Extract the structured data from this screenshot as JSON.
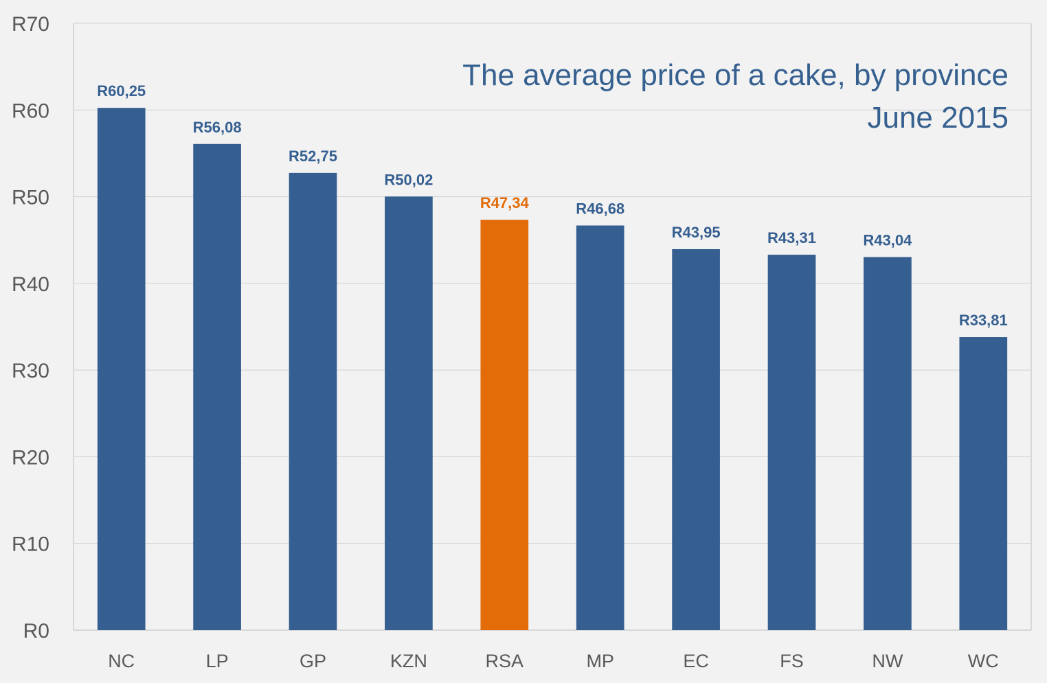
{
  "chart_data": {
    "type": "bar",
    "title": "The average price of a cake, by province",
    "subtitle": "June 2015",
    "xlabel": "",
    "ylabel": "",
    "categories": [
      "NC",
      "LP",
      "GP",
      "KZN",
      "RSA",
      "MP",
      "EC",
      "FS",
      "NW",
      "WC"
    ],
    "values": [
      60.25,
      56.08,
      52.75,
      50.02,
      47.34,
      46.68,
      43.95,
      43.31,
      43.04,
      33.81
    ],
    "data_labels": [
      "R60,25",
      "R56,08",
      "R52,75",
      "R50,02",
      "R47,34",
      "R46,68",
      "R43,95",
      "R43,31",
      "R43,04",
      "R33,81"
    ],
    "highlight_category": "RSA",
    "ylim": [
      0,
      70
    ],
    "yticks": [
      0,
      10,
      20,
      30,
      40,
      50,
      60,
      70
    ],
    "ytick_labels": [
      "R0",
      "R10",
      "R20",
      "R30",
      "R40",
      "R50",
      "R60",
      "R70"
    ],
    "grid": true,
    "legend": "none",
    "colors": {
      "bar": "#365f91",
      "highlight": "#e36c09",
      "title": "#35608f",
      "grid": "#d0d0d0",
      "axis_text": "#595959",
      "background": "#f2f2f2"
    }
  }
}
